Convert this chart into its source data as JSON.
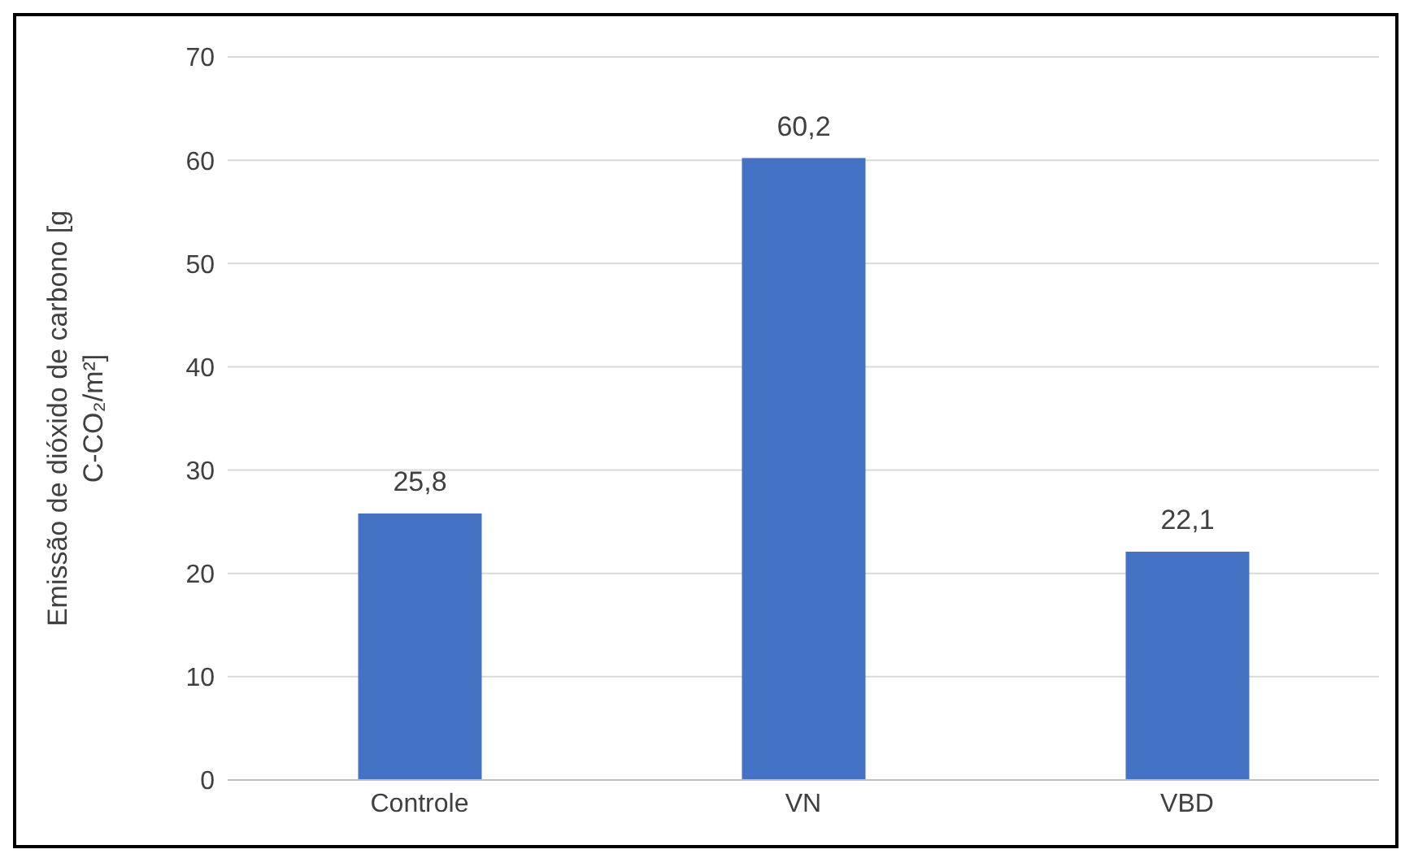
{
  "chart_data": {
    "type": "bar",
    "ylabel": "Emissão de dióxido de carbono [g C-CO₂/m²]",
    "categories": [
      "Controle",
      "VN",
      "VBD"
    ],
    "values": [
      25.8,
      60.2,
      22.1
    ],
    "value_labels": [
      "25,8",
      "60,2",
      "22,1"
    ],
    "color": "#4472c4",
    "ylim": [
      0,
      70
    ],
    "yticks": [
      0,
      10,
      20,
      30,
      40,
      50,
      60,
      70
    ],
    "grid": "y"
  }
}
